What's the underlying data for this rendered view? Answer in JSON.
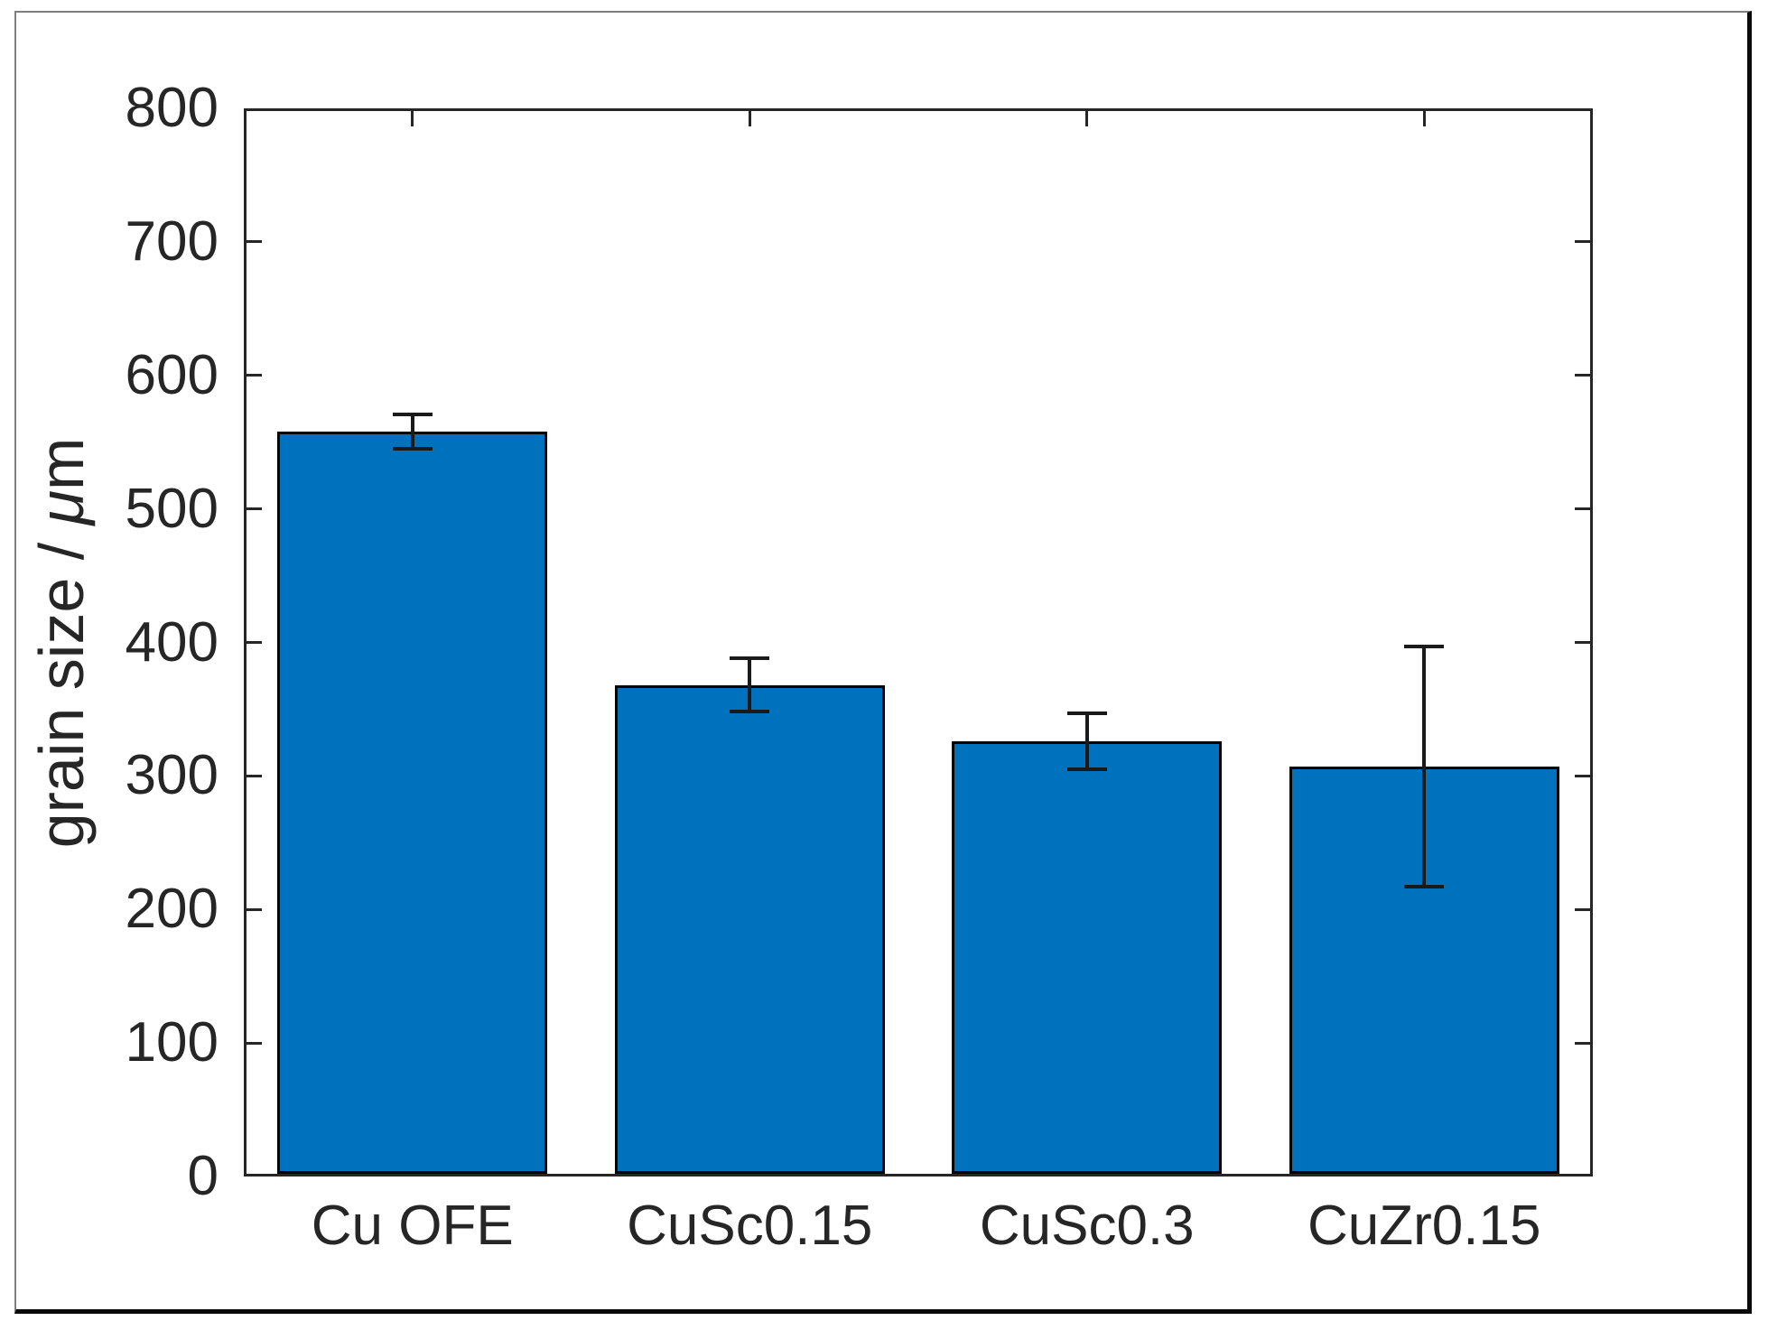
{
  "figure": {
    "background": "#ffffff",
    "outer_border_color": "#7f7f7f"
  },
  "chart_data": {
    "type": "bar",
    "title": "",
    "xlabel": "",
    "ylabel": "grain size / μm",
    "ylabel_parts": {
      "prefix": "grain size / ",
      "mu": "μ",
      "suffix": "m"
    },
    "categories": [
      "Cu OFE",
      "CuSc0.15",
      "CuSc0.3",
      "CuZr0.15"
    ],
    "values": [
      558,
      368,
      326,
      307
    ],
    "error_bars": [
      13,
      20,
      21,
      90
    ],
    "yticks": [
      0,
      100,
      200,
      300,
      400,
      500,
      600,
      700,
      800
    ],
    "ylim": [
      0,
      800
    ],
    "xlim": [
      0.5,
      4.5
    ],
    "bar_width_ratio": 0.8,
    "grid": false,
    "legend": null,
    "bar_color": "#0072BD",
    "bar_edge_color": "#000000",
    "error_color": "#1a1a1a",
    "axis_color": "#262626",
    "tick_direction": "in",
    "box": true
  }
}
